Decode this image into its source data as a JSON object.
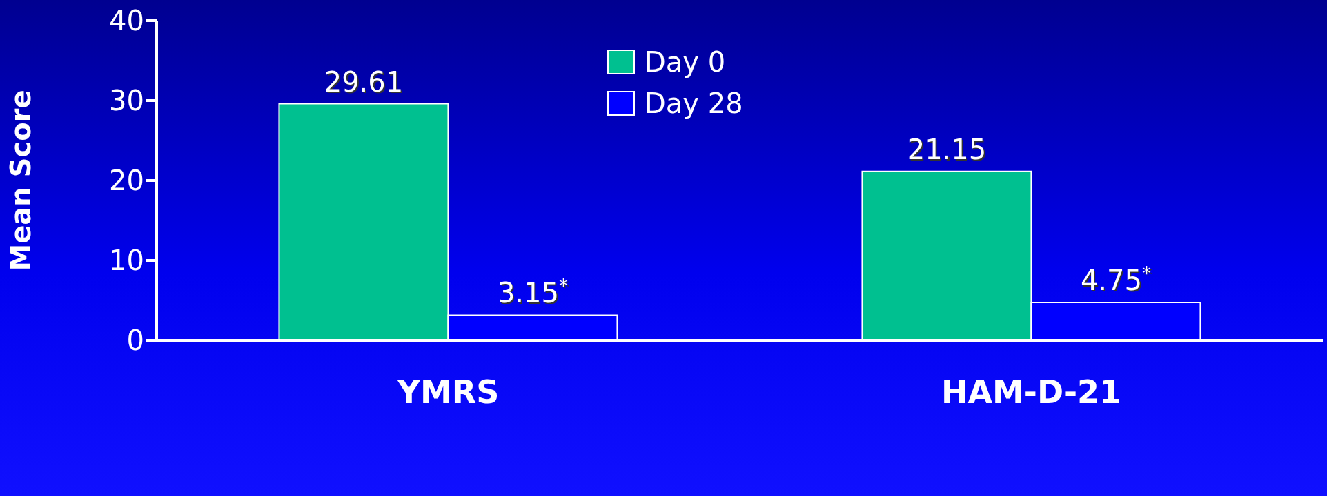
{
  "chart_data": {
    "type": "bar",
    "ylabel": "Mean Score",
    "categories": [
      "YMRS",
      "HAM-D-21"
    ],
    "series": [
      {
        "name": "Day 0",
        "color": "#00c090",
        "values": [
          29.61,
          21.15
        ],
        "value_labels": [
          "29.61",
          "21.15"
        ]
      },
      {
        "name": "Day 28",
        "color": "#0000ff",
        "values": [
          3.15,
          4.75
        ],
        "value_labels": [
          "3.15$^{*}$",
          "4.75$^{*}$"
        ]
      }
    ],
    "ylim": [
      0,
      40
    ],
    "yticks": [
      0,
      10,
      20,
      30,
      40
    ],
    "grid": false,
    "legend": "top"
  }
}
